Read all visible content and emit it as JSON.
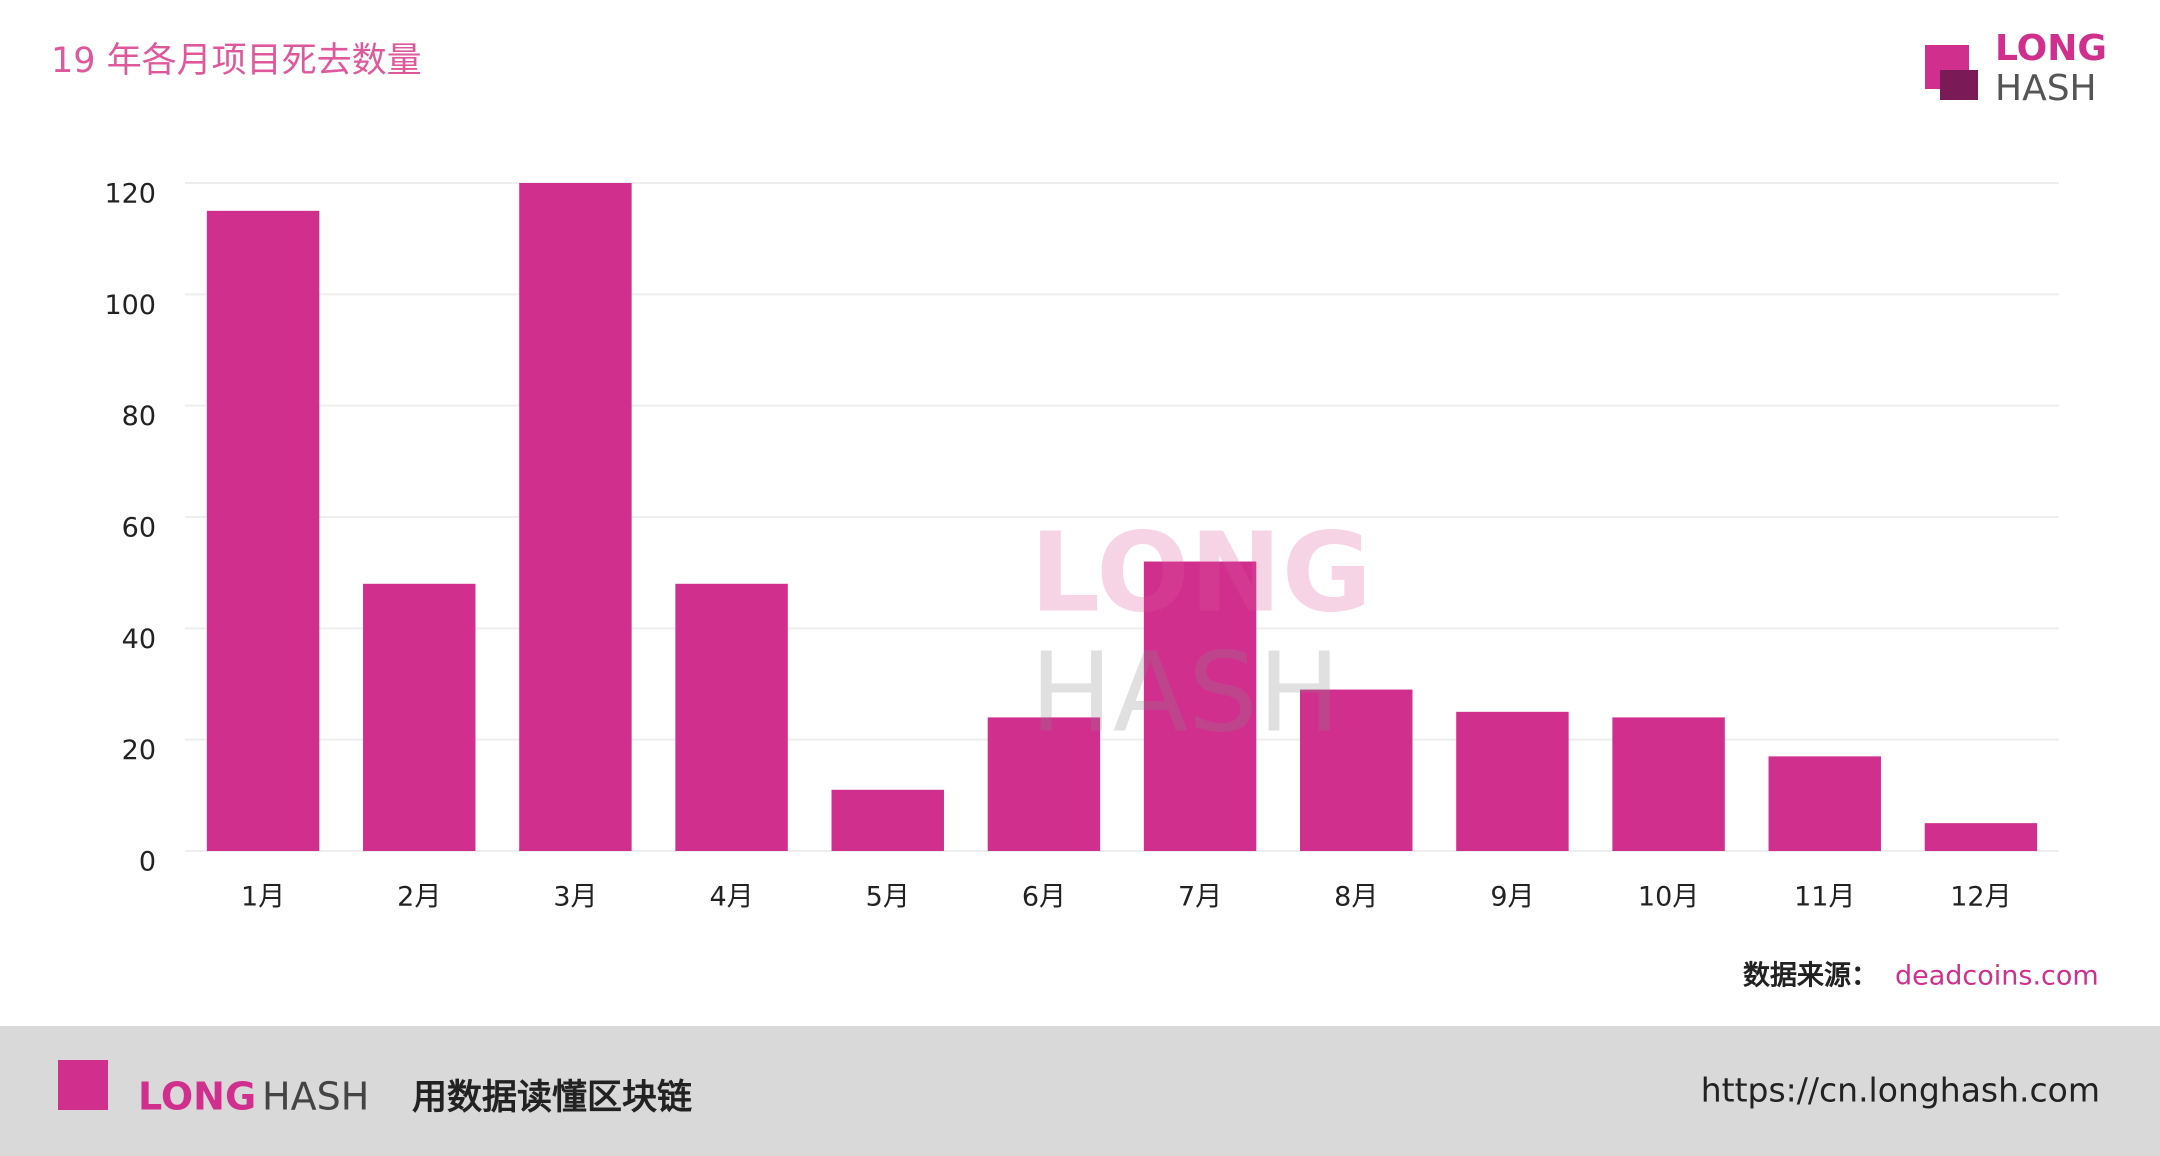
{
  "chart_data": {
    "type": "bar",
    "title": "19 年各月项目死去数量",
    "categories": [
      "1月",
      "2月",
      "3月",
      "4月",
      "5月",
      "6月",
      "7月",
      "8月",
      "9月",
      "10月",
      "11月",
      "12月"
    ],
    "values": [
      115,
      48,
      120,
      48,
      11,
      24,
      52,
      29,
      25,
      24,
      17,
      5
    ],
    "color": "#d12f8e",
    "ylim": [
      0,
      120
    ],
    "yticks": [
      0,
      20,
      40,
      60,
      80,
      100,
      120
    ],
    "grid": true
  },
  "logo": {
    "line1": "LONG",
    "line2": "HASH"
  },
  "source": {
    "label": "数据来源：",
    "site": "deadcoins.com"
  },
  "footer": {
    "brand1": "LONG",
    "brand2": "HASH",
    "slogan": "用数据读懂区块链",
    "url": "https://cn.longhash.com"
  }
}
